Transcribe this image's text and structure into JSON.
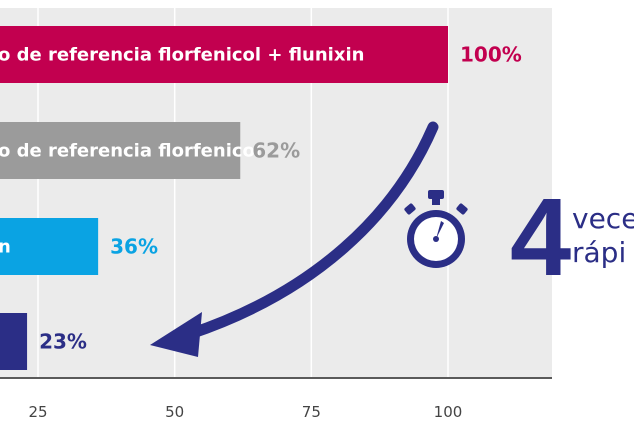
{
  "colors": {
    "background": "#ffffff",
    "plot_background": "#ebebeb",
    "gridline": "#ffffff",
    "axis_line": "#5a5a5a",
    "tick_label": "#444444",
    "arrow": "#2b2e86",
    "stopwatch": "#2b2e86",
    "callout_number": "#2b2e86",
    "callout_text": "#2b2e86"
  },
  "icons": [
    "stopwatch-icon",
    "curved-arrow-icon"
  ],
  "chart_data": {
    "type": "bar",
    "orientation": "horizontal",
    "xlim": [
      0,
      115
    ],
    "grid": true,
    "xticks": [
      25,
      50,
      75,
      100
    ],
    "bars": [
      {
        "label": "o de referencia florfenicol + flunixin",
        "value": 100,
        "value_label": "100%",
        "color": "#c2004f",
        "value_color": "#c2004f"
      },
      {
        "label": "o de referencia florfenicol",
        "value": 62,
        "value_label": "62%",
        "color": "#9b9b9b",
        "value_color": "#9b9b9b"
      },
      {
        "label": "n",
        "value": 36,
        "value_label": "36%",
        "color": "#0aa3e3",
        "value_color": "#0aa3e3"
      },
      {
        "label": "",
        "value": 23,
        "value_label": "23%",
        "color": "#2b2e86",
        "value_color": "#2b2e86"
      }
    ]
  },
  "callout": {
    "number": "4",
    "line1": "vece",
    "line2": "rápi"
  }
}
